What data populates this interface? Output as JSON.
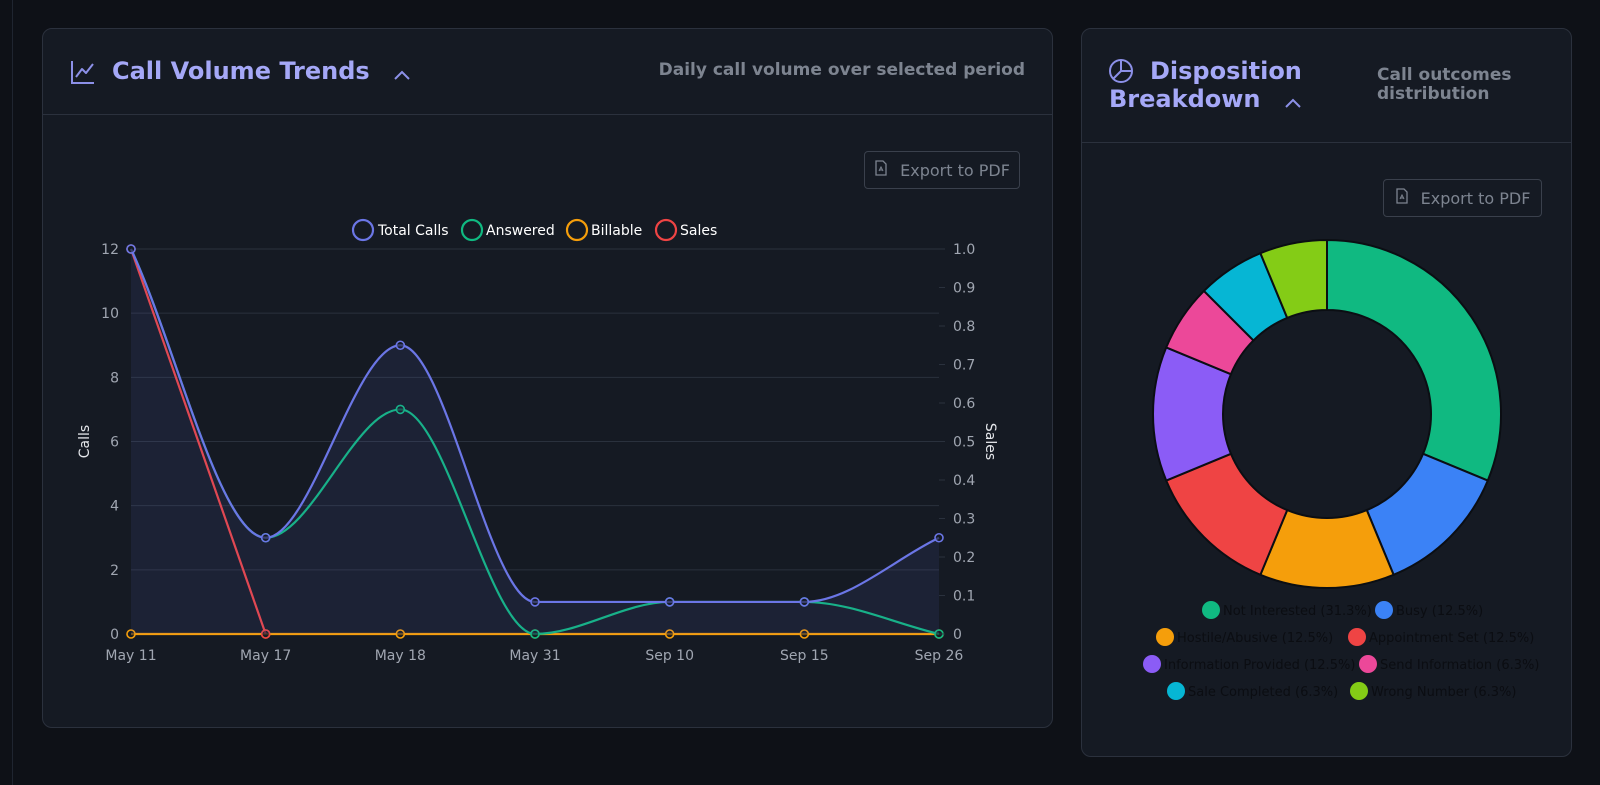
{
  "trends": {
    "title": "Call Volume Trends",
    "subtitle": "Daily call volume over selected period",
    "export_label": "Export to PDF"
  },
  "disposition": {
    "title_line1": "Disposition",
    "title_line2": "Breakdown",
    "subtitle_line1": "Call outcomes",
    "subtitle_line2": "distribution",
    "export_label": "Export to PDF"
  },
  "colors": {
    "total": "#6b76e6",
    "answered": "#10b981",
    "billable": "#f59e0b",
    "sales": "#ef4444",
    "title": "#a5a8f7"
  },
  "chart_data": [
    {
      "type": "line",
      "title": "",
      "xlabel": "",
      "ylabel": "Calls",
      "y2label": "Sales",
      "categories": [
        "May 11",
        "May 17",
        "May 18",
        "May 31",
        "Sep 10",
        "Sep 15",
        "Sep 26"
      ],
      "ylim": [
        0,
        12
      ],
      "yticks": [
        0,
        2,
        4,
        6,
        8,
        10,
        12
      ],
      "y2lim": [
        0,
        1
      ],
      "y2ticks": [
        "0",
        "0.1",
        "0.2",
        "0.3",
        "0.4",
        "0.5",
        "0.6",
        "0.7",
        "0.8",
        "0.9",
        "1.0"
      ],
      "grid": true,
      "legend_position": "top",
      "series": [
        {
          "name": "Total Calls",
          "key": "total",
          "axis": "left",
          "fill": true,
          "values": [
            12,
            3,
            9,
            1,
            1,
            1,
            3
          ]
        },
        {
          "name": "Answered",
          "key": "answered",
          "axis": "left",
          "fill": false,
          "values": [
            12,
            3,
            7,
            0,
            1,
            1,
            0
          ]
        },
        {
          "name": "Billable",
          "key": "billable",
          "axis": "left",
          "fill": false,
          "values": [
            0,
            0,
            0,
            0,
            0,
            0,
            0
          ]
        },
        {
          "name": "Sales",
          "key": "sales",
          "axis": "right",
          "fill": false,
          "values": [
            1,
            0,
            null,
            null,
            null,
            null,
            null
          ]
        }
      ]
    },
    {
      "type": "pie",
      "variant": "doughnut",
      "title": "",
      "legend_position": "bottom",
      "slices": [
        {
          "label": "Not Interested (31.3%)",
          "value": 31.25,
          "color": "#10b981"
        },
        {
          "label": "Busy (12.5%)",
          "value": 12.5,
          "color": "#3b82f6"
        },
        {
          "label": "Hostile/Abusive (12.5%)",
          "value": 12.5,
          "color": "#f59e0b"
        },
        {
          "label": "Appointment Set (12.5%)",
          "value": 12.5,
          "color": "#ef4444"
        },
        {
          "label": "Information Provided (12.5%)",
          "value": 12.5,
          "color": "#8b5cf6"
        },
        {
          "label": "Send Information (6.3%)",
          "value": 6.25,
          "color": "#ec4899"
        },
        {
          "label": "Sale Completed (6.3%)",
          "value": 6.25,
          "color": "#06b6d4"
        },
        {
          "label": "Wrong Number (6.3%)",
          "value": 6.25,
          "color": "#84cc16"
        }
      ],
      "legend_rows": [
        [
          0,
          1
        ],
        [
          2,
          3
        ],
        [
          4,
          5
        ],
        [
          6,
          7
        ]
      ]
    }
  ]
}
